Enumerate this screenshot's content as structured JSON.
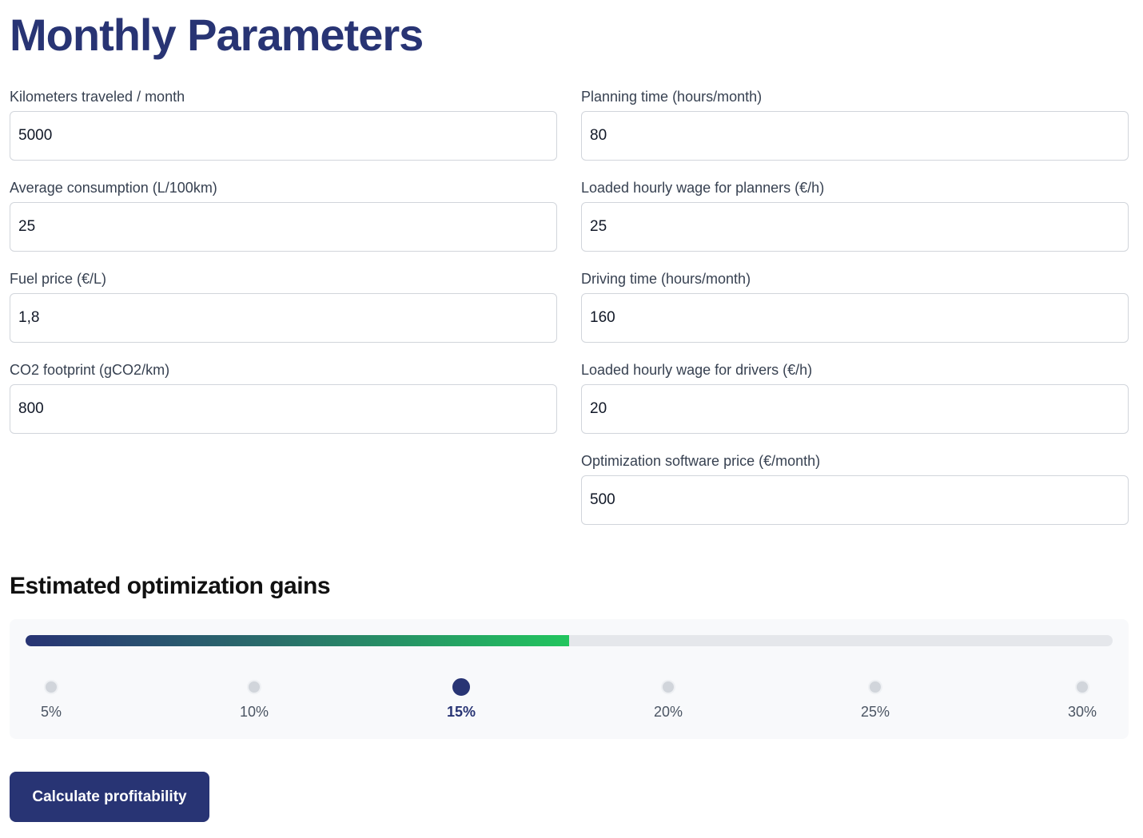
{
  "page_title": "Monthly Parameters",
  "fields_left": [
    {
      "label": "Kilometers traveled / month",
      "value": "5000"
    },
    {
      "label": "Average consumption (L/100km)",
      "value": "25"
    },
    {
      "label": "Fuel price (€/L)",
      "value": "1,8"
    },
    {
      "label": "CO2 footprint (gCO2/km)",
      "value": "800"
    }
  ],
  "fields_right": [
    {
      "label": "Planning time (hours/month)",
      "value": "80"
    },
    {
      "label": "Loaded hourly wage for planners (€/h)",
      "value": "25"
    },
    {
      "label": "Driving time (hours/month)",
      "value": "160"
    },
    {
      "label": "Loaded hourly wage for drivers (€/h)",
      "value": "20"
    },
    {
      "label": "Optimization software price (€/month)",
      "value": "500"
    }
  ],
  "gains": {
    "title": "Estimated optimization gains",
    "options": [
      "5%",
      "10%",
      "15%",
      "20%",
      "25%",
      "30%"
    ],
    "selected_index": 2,
    "progress_fraction": 0.5
  },
  "calc_button_label": "Calculate profitability",
  "colors": {
    "accent": "#283474",
    "gradient_end": "#22c55e"
  }
}
